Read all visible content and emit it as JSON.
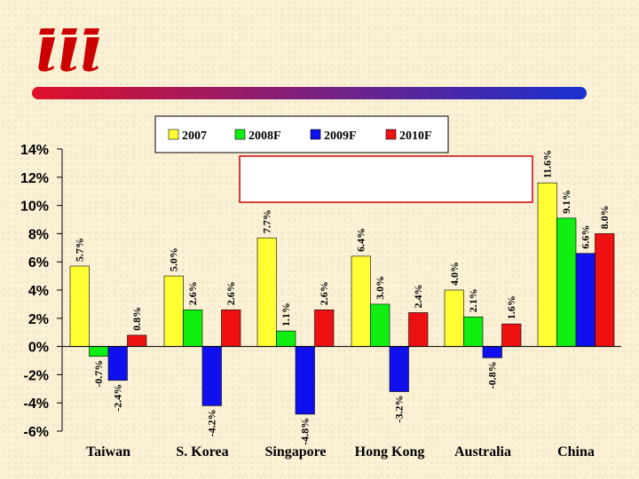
{
  "logo": {
    "text": "iii",
    "color": "#cc0000"
  },
  "rule": {
    "gradient_start": "#e0102a",
    "gradient_end": "#1830d0"
  },
  "chart_data": {
    "type": "bar",
    "categories": [
      "Taiwan",
      "S. Korea",
      "Singapore",
      "Hong Kong",
      "Australia",
      "China"
    ],
    "series": [
      {
        "name": "2007",
        "color": "#ffff33",
        "values": [
          5.7,
          5.0,
          7.7,
          6.4,
          4.0,
          11.6
        ],
        "labels": [
          "5.7%",
          "5.0%",
          "7.7%",
          "6.4%",
          "4.0%",
          "11.6%"
        ]
      },
      {
        "name": "2008F",
        "color": "#11ee11",
        "values": [
          -0.7,
          2.6,
          1.1,
          3.0,
          2.1,
          9.1
        ],
        "labels": [
          "-0.7%",
          "2.6%",
          "1.1%",
          "3.0%",
          "2.1%",
          "9.1%"
        ]
      },
      {
        "name": "2009F",
        "color": "#1010ee",
        "values": [
          -2.4,
          -4.2,
          -4.8,
          -3.2,
          -0.8,
          6.6
        ],
        "labels": [
          "-2.4%",
          "-4.2%",
          "-4.8%",
          "-3.2%",
          "-0.8%",
          "6.6%"
        ]
      },
      {
        "name": "2010F",
        "color": "#ee1111",
        "values": [
          0.8,
          2.6,
          2.6,
          2.4,
          1.6,
          8.0
        ],
        "labels": [
          "0.8%",
          "2.6%",
          "2.6%",
          "2.4%",
          "1.6%",
          "8.0%"
        ]
      }
    ],
    "ylim": [
      -6,
      14
    ],
    "yticks": [
      14,
      12,
      10,
      8,
      6,
      4,
      2,
      0,
      -2,
      -4,
      -6
    ],
    "ytick_labels": [
      "14%",
      "12%",
      "10%",
      "8%",
      "6%",
      "4%",
      "2%",
      "0%",
      "-2%",
      "-4%",
      "-6%"
    ],
    "grid": false,
    "legend_position": "top"
  }
}
